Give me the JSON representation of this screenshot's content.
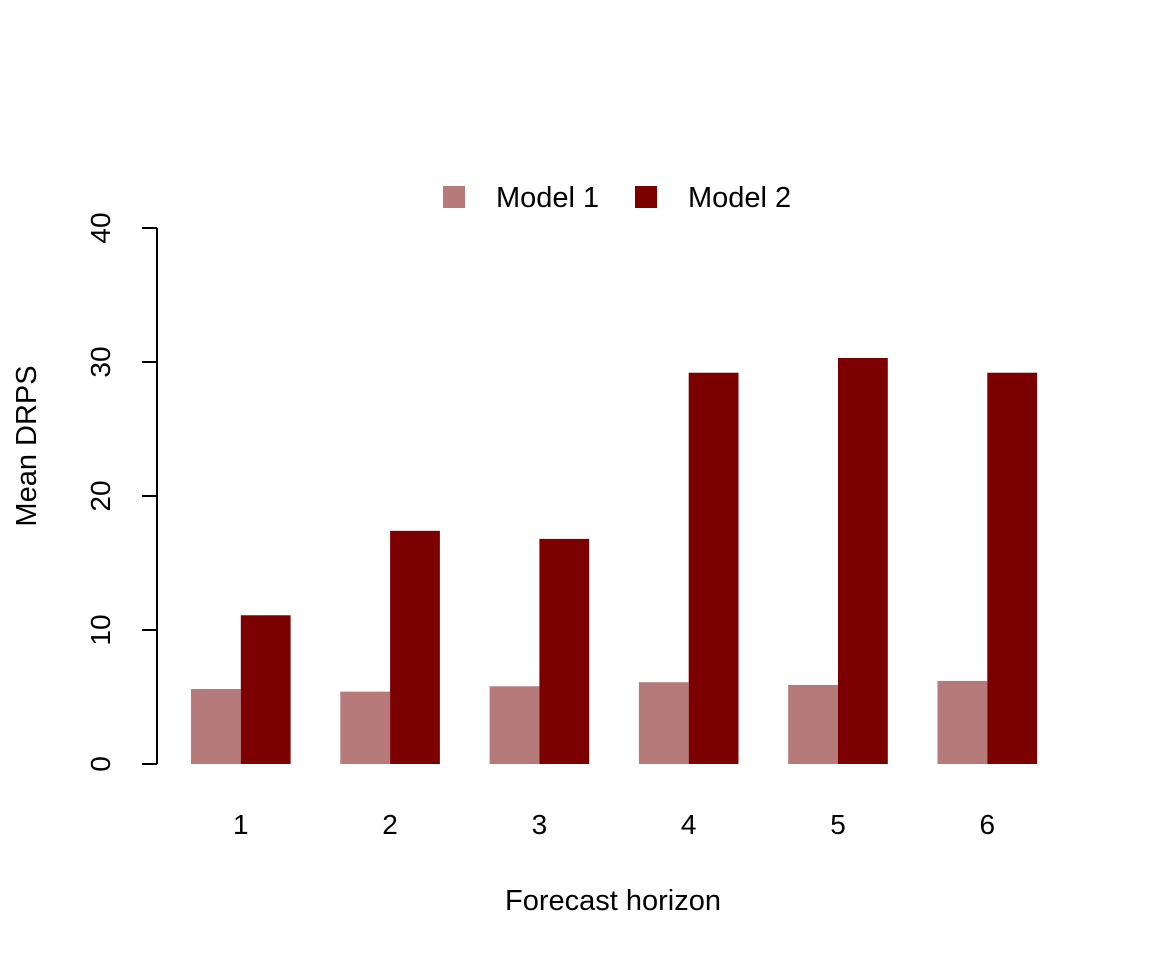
{
  "chart_data": {
    "type": "bar",
    "title": "",
    "xlabel": "Forecast horizon",
    "ylabel": "Mean DRPS",
    "categories": [
      "1",
      "2",
      "3",
      "4",
      "5",
      "6"
    ],
    "series": [
      {
        "name": "Model 1",
        "color": "#b67a7a",
        "values": [
          5.6,
          5.4,
          5.8,
          6.1,
          5.9,
          6.2
        ]
      },
      {
        "name": "Model 2",
        "color": "#7d0000",
        "values": [
          11.1,
          17.4,
          16.8,
          29.2,
          30.3,
          29.2
        ]
      }
    ],
    "ylim": [
      0,
      40
    ],
    "yticks": [
      0,
      10,
      20,
      30,
      40
    ],
    "grid": false,
    "legend_position": "top"
  }
}
